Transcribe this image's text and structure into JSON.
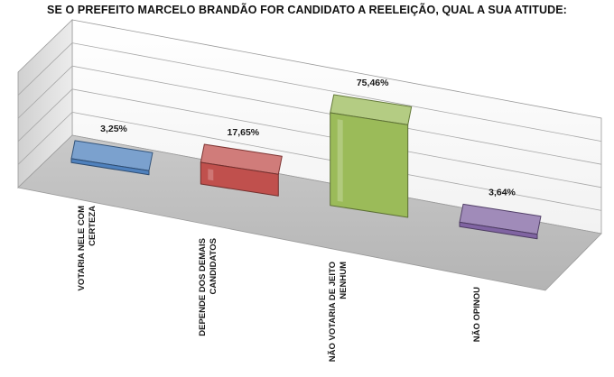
{
  "chart_data": {
    "type": "bar",
    "title": "SE O PREFEITO MARCELO BRANDÃO FOR CANDIDATO A REELEIÇÃO, QUAL A SUA ATITUDE:",
    "categories": [
      [
        "VOTARIA NELE COM",
        "CERTEZA"
      ],
      [
        "DEPENDE DOS DEMAIS",
        "CANDIDATOS"
      ],
      [
        "NÃO VOTARIA DE JEITO",
        "NENHUM"
      ],
      [
        "NÃO OPINOU"
      ]
    ],
    "values": [
      3.25,
      17.65,
      75.46,
      3.64
    ],
    "value_labels": [
      "3,25%",
      "17,65%",
      "75,46%",
      "3,64%"
    ],
    "colors": [
      "#4f81bd",
      "#c0504d",
      "#9bbb59",
      "#8064a2"
    ],
    "ylim": [
      0,
      100
    ],
    "grid": true,
    "legend": "none",
    "style": "3d"
  }
}
